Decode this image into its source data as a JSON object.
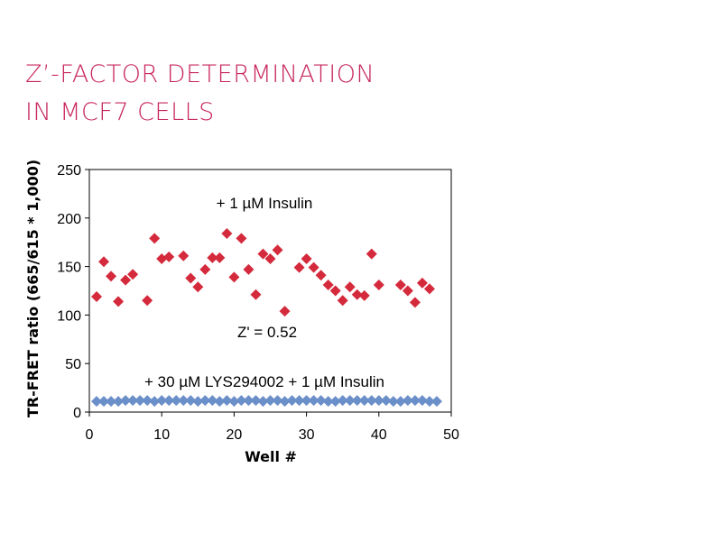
{
  "title_lines": [
    "Z’-FACTOR DETERMINATION",
    "IN MCF7 CELLS"
  ],
  "colors": {
    "title": "#c8285c",
    "series_insulin": "#d42a3c",
    "series_inhibitor": "#6b8fc9"
  },
  "chart_data": {
    "type": "scatter",
    "xlabel": "Well #",
    "ylabel": "TR-FRET ratio (665/615 * 1,000)",
    "xlim": [
      0,
      50
    ],
    "ylim": [
      0,
      250
    ],
    "xticks": [
      0,
      10,
      20,
      30,
      40,
      50
    ],
    "yticks": [
      0,
      50,
      100,
      150,
      200,
      250
    ],
    "grid": false,
    "annotations": [
      "+ 1 µM Insulin",
      "Z' = 0.52",
      "+ 30 µM LYS294002 + 1 µM Insulin"
    ],
    "series": [
      {
        "label_ref": "+ 1 µM Insulin",
        "marker": "diamond",
        "color": "#d42a3c",
        "x": [
          1,
          2,
          3,
          4,
          5,
          6,
          8,
          9,
          10,
          11,
          13,
          14,
          15,
          16,
          17,
          18,
          19,
          20,
          21,
          22,
          23,
          24,
          25,
          26,
          27,
          29,
          30,
          31,
          32,
          33,
          34,
          35,
          36,
          37,
          38,
          39,
          40,
          43,
          44,
          45,
          46,
          47
        ],
        "y": [
          119,
          155,
          140,
          114,
          136,
          142,
          115,
          179,
          158,
          160,
          161,
          138,
          129,
          147,
          159,
          159,
          184,
          139,
          179,
          147,
          121,
          163,
          158,
          167,
          104,
          149,
          158,
          149,
          141,
          131,
          125,
          115,
          129,
          121,
          120,
          163,
          131,
          131,
          125,
          113,
          133,
          127
        ]
      },
      {
        "label_ref": "+ 30 µM LYS294002 + 1 µM Insulin",
        "marker": "diamond",
        "color": "#6b8fc9",
        "x": [
          1,
          2,
          3,
          4,
          5,
          6,
          7,
          8,
          9,
          10,
          11,
          12,
          13,
          14,
          15,
          16,
          17,
          18,
          19,
          20,
          21,
          22,
          23,
          24,
          25,
          26,
          27,
          28,
          29,
          30,
          31,
          32,
          33,
          34,
          35,
          36,
          37,
          38,
          39,
          40,
          41,
          42,
          43,
          44,
          45,
          46,
          47,
          48
        ],
        "y": [
          11,
          11,
          11,
          11,
          12,
          12,
          12,
          12,
          11,
          12,
          12,
          12,
          12,
          12,
          11,
          12,
          12,
          11,
          12,
          11,
          12,
          12,
          12,
          11,
          12,
          12,
          11,
          12,
          12,
          12,
          12,
          12,
          11,
          11,
          12,
          12,
          12,
          12,
          12,
          12,
          12,
          11,
          11,
          12,
          12,
          12,
          11,
          11
        ]
      }
    ]
  }
}
